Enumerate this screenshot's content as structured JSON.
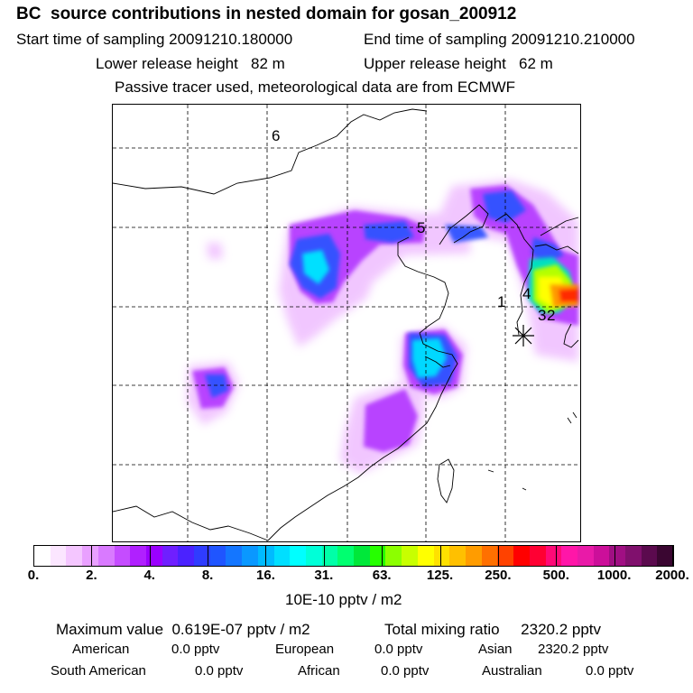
{
  "header": {
    "title": "BC  source contributions in nested domain for gosan_200912",
    "start_label": "Start time of sampling 20091210.180000",
    "end_label": "End time of sampling 20091210.210000",
    "lower_label": "Lower release height   82 m",
    "upper_label": "Upper release height   62 m",
    "note": "Passive tracer used, meteorological data are from ECMWF"
  },
  "map": {
    "point_labels": [
      "6",
      "5",
      "4",
      "1",
      "3",
      "2"
    ],
    "receptor_marker": "asterisk-icon"
  },
  "colorbar": {
    "tick_labels": [
      "0.",
      "2.",
      "4.",
      "8.",
      "16.",
      "31.",
      "63.",
      "125.",
      "250.",
      "500.",
      "1000.",
      "2000."
    ],
    "colors": [
      "#ffffff",
      "#fbe6ff",
      "#f4c6ff",
      "#e9a0ff",
      "#d97aff",
      "#c54cff",
      "#b020ff",
      "#9a00ff",
      "#6f1fff",
      "#4b22ff",
      "#2f3cff",
      "#1f55ff",
      "#1476ff",
      "#0a98ff",
      "#00bbff",
      "#00dfff",
      "#00ffff",
      "#00ffd8",
      "#00ffa8",
      "#00ff70",
      "#00e83a",
      "#26ff00",
      "#8cff00",
      "#c8ff00",
      "#ffff00",
      "#ffe100",
      "#ffc000",
      "#ff9c00",
      "#ff7000",
      "#ff4200",
      "#ff0000",
      "#ff0033",
      "#ff0a77",
      "#ff16a8",
      "#e91aa8",
      "#cc0f9a",
      "#a00f83",
      "#80106d",
      "#5b0a4e",
      "#3a0631"
    ],
    "units": "10E-10 pptv / m2"
  },
  "summary": {
    "max_label": "Maximum value  0.619E-07 pptv / m2",
    "total_label": "Total mixing ratio     2320.2 pptv",
    "american_label": "American",
    "american_value": "0.0 pptv",
    "european_label": "European",
    "european_value": "0.0 pptv",
    "asian_label": "Asian",
    "asian_value": "2320.2 pptv",
    "south_american_label": "South American",
    "south_american_value": "0.0 pptv",
    "african_label": "African",
    "african_value": "0.0 pptv",
    "australian_label": "Australian",
    "australian_value": "0.0 pptv"
  }
}
